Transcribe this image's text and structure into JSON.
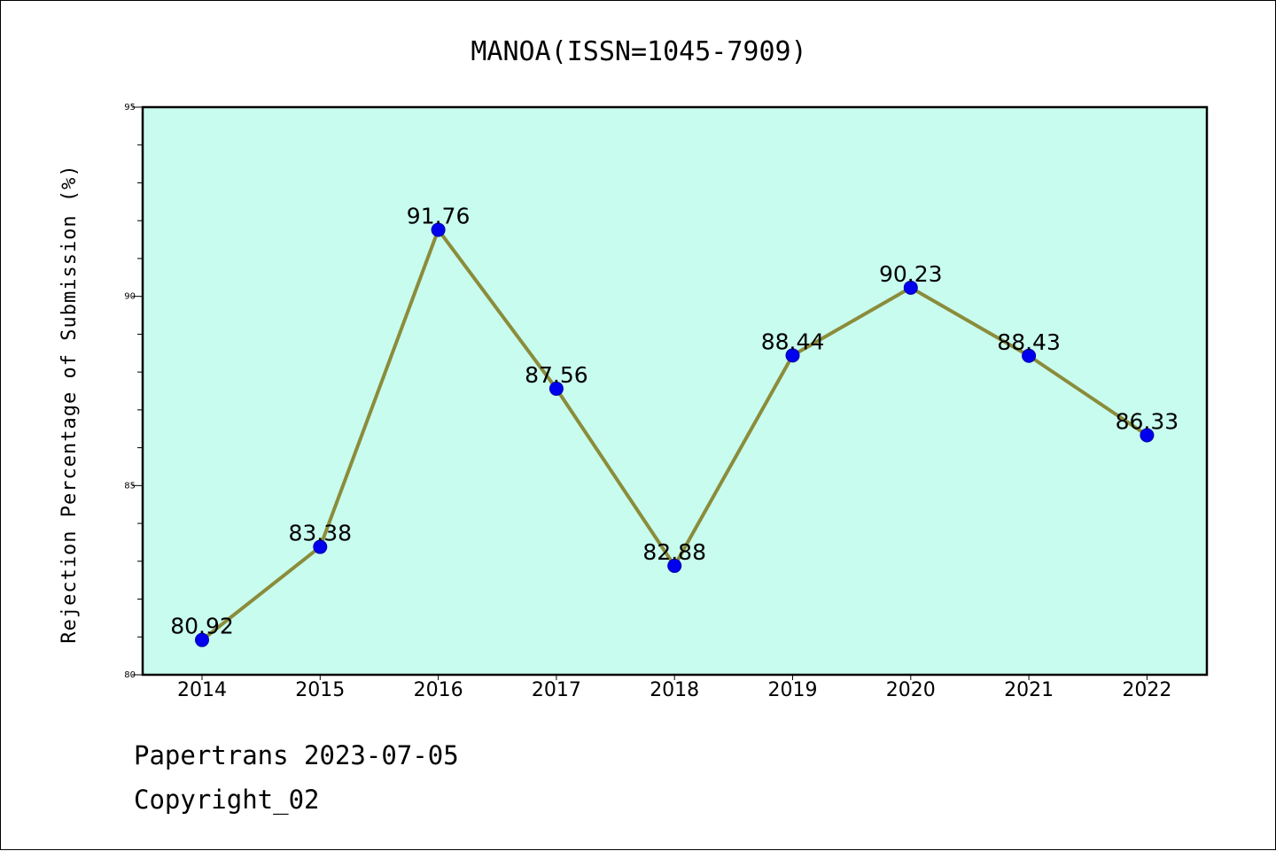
{
  "chart_data": {
    "type": "line",
    "title": "MANOA(ISSN=1045-7909)",
    "ylabel": "Rejection Percentage of Submission (%)",
    "xlabel": "",
    "categories": [
      "2014",
      "2015",
      "2016",
      "2017",
      "2018",
      "2019",
      "2020",
      "2021",
      "2022"
    ],
    "series": [
      {
        "values": [
          80.92,
          83.38,
          91.76,
          87.56,
          82.88,
          88.44,
          90.23,
          88.43,
          86.33
        ],
        "labels": [
          "80.92",
          "83.38",
          "91.76",
          "87.56",
          "82.88",
          "88.44",
          "90.23",
          "88.43",
          "86.33"
        ],
        "line_color": "#8b8c3b",
        "marker_color": "#0000ee"
      }
    ],
    "ylim": [
      80,
      95
    ],
    "yticks": [
      "80",
      "85",
      "90",
      "95"
    ],
    "plot_background": "#c8fcee",
    "grid": false,
    "legend": "none"
  },
  "footer": {
    "line1": "Papertrans 2023-07-05",
    "line2": "Copyright_02"
  }
}
